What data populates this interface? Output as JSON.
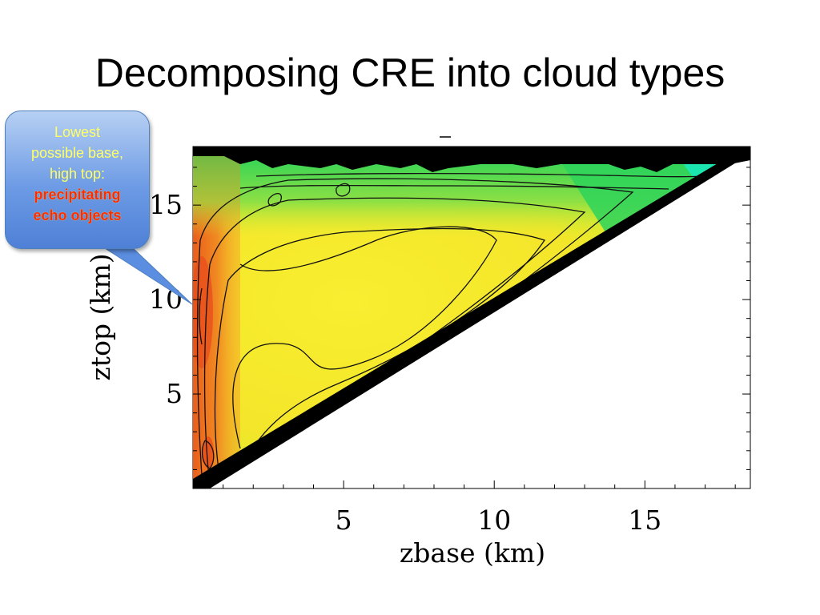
{
  "slide": {
    "title": "Decomposing CRE into cloud types"
  },
  "callout": {
    "line1": "Lowest",
    "line2": "possible base,",
    "line3": "high top:",
    "line4": "precipitating",
    "line5": "echo objects"
  },
  "chart_data": {
    "type": "heatmap",
    "title": "",
    "xlabel": "zbase (km)",
    "ylabel": "ztop (km)",
    "xlim": [
      0,
      18.5
    ],
    "ylim": [
      0,
      18.1
    ],
    "xticks": [
      5,
      10,
      15
    ],
    "yticks": [
      5,
      10,
      15
    ],
    "colors": {
      "red": "#e8501c",
      "orange": "#f5a623",
      "yellow": "#f6ec2c",
      "lime": "#b8e83a",
      "green": "#2ed35a",
      "cyan": "#1ce6b0",
      "blue": "#1a4fe0",
      "black": "#000000"
    }
  }
}
